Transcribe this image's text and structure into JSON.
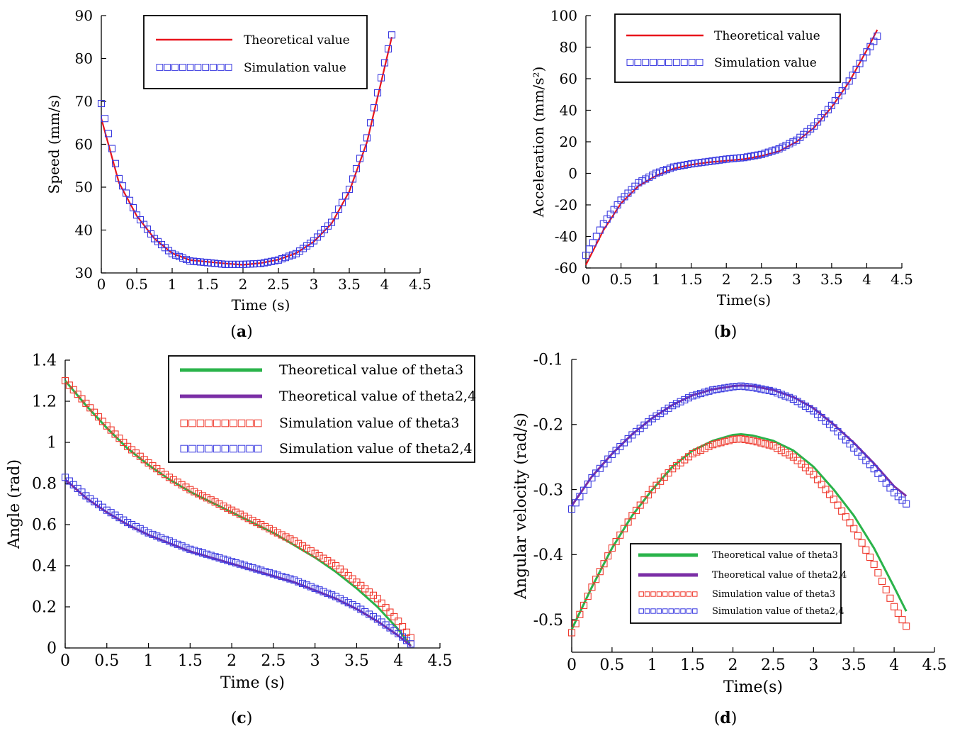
{
  "colors": {
    "theory_red": "#e8141c",
    "sim_blue": "#3a3ae0",
    "sim_red": "#ef3a2e",
    "theory_green": "#2ab34a",
    "theory_purple": "#7b2fa6"
  },
  "captions": {
    "a": "a",
    "b": "b",
    "c": "c",
    "d": "d"
  },
  "chart_data": [
    {
      "id": "a",
      "type": "line",
      "title": "",
      "xlabel": "Time (s)",
      "ylabel": "Speed (mm/s)",
      "xlim": [
        0,
        4.5
      ],
      "ylim": [
        30,
        90
      ],
      "xticks": [
        "0",
        "0.5",
        "1",
        "1.5",
        "2",
        "2.5",
        "3",
        "3.5",
        "4",
        "4.5"
      ],
      "yticks": [
        "30",
        "40",
        "50",
        "60",
        "70",
        "80",
        "90"
      ],
      "legend_position": "top-center",
      "series": [
        {
          "name": "Theoretical value",
          "kind": "line",
          "color": "#e8141c",
          "x": [
            0,
            0.25,
            0.5,
            0.75,
            1,
            1.25,
            1.5,
            1.75,
            2,
            2.25,
            2.5,
            2.75,
            3,
            3.25,
            3.5,
            3.75,
            4,
            4.1
          ],
          "y": [
            66,
            51,
            43.3,
            38,
            34.6,
            33,
            32.6,
            32.2,
            31.9,
            32.3,
            33.1,
            34.6,
            37.3,
            41.5,
            49,
            60.5,
            78,
            85
          ]
        },
        {
          "name": "Simulation value",
          "kind": "markers",
          "color": "#3a3ae0",
          "x": [
            0,
            0.25,
            0.5,
            0.75,
            1,
            1.25,
            1.5,
            1.75,
            2,
            2.25,
            2.5,
            2.75,
            3,
            3.25,
            3.5,
            3.75,
            4,
            4.1
          ],
          "y": [
            69.5,
            52,
            43.5,
            38,
            34.5,
            32.8,
            32.4,
            32,
            32,
            32.2,
            33,
            34.5,
            37.5,
            41.8,
            49.5,
            61.5,
            79,
            85.5
          ]
        }
      ]
    },
    {
      "id": "b",
      "type": "line",
      "title": "",
      "xlabel": "Time(s)",
      "ylabel": "Acceleration (mm/s²)",
      "xlim": [
        0,
        4.5
      ],
      "ylim": [
        -60,
        100
      ],
      "xticks": [
        "0",
        "0.5",
        "1",
        "1.5",
        "2",
        "2.5",
        "3",
        "3.5",
        "4",
        "4.5"
      ],
      "yticks": [
        "-60",
        "-40",
        "-20",
        "0",
        "20",
        "40",
        "60",
        "80",
        "100"
      ],
      "legend_position": "top-center",
      "series": [
        {
          "name": "Theoretical value",
          "kind": "line",
          "color": "#e8141c",
          "x": [
            0,
            0.25,
            0.5,
            0.75,
            1,
            1.25,
            1.5,
            1.75,
            2,
            2.25,
            2.5,
            2.75,
            3,
            3.25,
            3.5,
            3.75,
            4,
            4.15
          ],
          "y": [
            -58,
            -36,
            -19,
            -8,
            -1.5,
            3,
            5.5,
            7,
            8,
            9,
            11,
            14,
            20,
            29,
            42,
            58,
            78,
            91
          ]
        },
        {
          "name": "Simulation value",
          "kind": "markers",
          "color": "#3a3ae0",
          "x": [
            0,
            0.25,
            0.5,
            0.75,
            1,
            1.25,
            1.5,
            1.75,
            2,
            2.25,
            2.5,
            2.75,
            3,
            3.25,
            3.5,
            3.75,
            4,
            4.15
          ],
          "y": [
            -52,
            -32,
            -17,
            -6,
            0,
            4,
            6,
            7.5,
            9,
            10,
            12,
            15.5,
            21,
            30,
            43,
            58.5,
            77,
            87
          ]
        }
      ]
    },
    {
      "id": "c",
      "type": "line",
      "title": "",
      "xlabel": "Time (s)",
      "ylabel": "Angle (rad)",
      "xlim": [
        0,
        4.5
      ],
      "ylim": [
        0,
        1.4
      ],
      "xticks": [
        "0",
        "0.5",
        "1",
        "1.5",
        "2",
        "2.5",
        "3",
        "3.5",
        "4",
        "4.5"
      ],
      "yticks": [
        "0",
        "0.2",
        "0.4",
        "0.6",
        "0.8",
        "1",
        "1.2",
        "1.4"
      ],
      "legend_position": "top-right",
      "series": [
        {
          "name": "Theoretical value of theta3",
          "kind": "line",
          "color": "#2ab34a",
          "x": [
            0,
            0.25,
            0.5,
            0.75,
            1,
            1.25,
            1.5,
            1.75,
            2,
            2.25,
            2.5,
            2.75,
            3,
            3.25,
            3.5,
            3.75,
            4,
            4.15
          ],
          "y": [
            1.3,
            1.18,
            1.07,
            0.97,
            0.89,
            0.82,
            0.76,
            0.71,
            0.66,
            0.61,
            0.56,
            0.5,
            0.44,
            0.37,
            0.29,
            0.2,
            0.09,
            0.01
          ]
        },
        {
          "name": "Theoretical value of theta2,4",
          "kind": "line",
          "color": "#7b2fa6",
          "x": [
            0,
            0.25,
            0.5,
            0.75,
            1,
            1.25,
            1.5,
            1.75,
            2,
            2.25,
            2.5,
            2.75,
            3,
            3.25,
            3.5,
            3.75,
            4,
            4.15
          ],
          "y": [
            0.82,
            0.73,
            0.66,
            0.6,
            0.55,
            0.51,
            0.47,
            0.44,
            0.41,
            0.38,
            0.35,
            0.32,
            0.28,
            0.24,
            0.19,
            0.13,
            0.06,
            0.01
          ]
        },
        {
          "name": "Simulation value of theta3",
          "kind": "markers",
          "color": "#ef3a2e",
          "x": [
            0,
            0.25,
            0.5,
            0.75,
            1,
            1.25,
            1.5,
            1.75,
            2,
            2.25,
            2.5,
            2.75,
            3,
            3.25,
            3.5,
            3.75,
            4,
            4.15
          ],
          "y": [
            1.3,
            1.19,
            1.08,
            0.98,
            0.9,
            0.83,
            0.77,
            0.72,
            0.67,
            0.62,
            0.57,
            0.52,
            0.46,
            0.4,
            0.32,
            0.24,
            0.13,
            0.05
          ]
        },
        {
          "name": "Simulation value of theta2,4",
          "kind": "markers",
          "color": "#3a3ae0",
          "x": [
            0,
            0.25,
            0.5,
            0.75,
            1,
            1.25,
            1.5,
            1.75,
            2,
            2.25,
            2.5,
            2.75,
            3,
            3.25,
            3.5,
            3.75,
            4,
            4.15
          ],
          "y": [
            0.83,
            0.74,
            0.67,
            0.61,
            0.56,
            0.52,
            0.48,
            0.45,
            0.42,
            0.39,
            0.36,
            0.33,
            0.29,
            0.25,
            0.2,
            0.14,
            0.07,
            0.02
          ]
        }
      ]
    },
    {
      "id": "d",
      "type": "line",
      "title": "",
      "xlabel": "Time(s)",
      "ylabel": "Angular velocity (rad/s)",
      "xlim": [
        0,
        4.5
      ],
      "ylim": [
        -0.55,
        -0.1
      ],
      "xticks": [
        "0",
        "0.5",
        "1",
        "1.5",
        "2",
        "2.5",
        "3",
        "3.5",
        "4",
        "4.5"
      ],
      "yticks": [
        "-0.5",
        "-0.4",
        "-0.3",
        "-0.2",
        "-0.1"
      ],
      "legend_position": "bottom-center",
      "series": [
        {
          "name": "Theoretical value of theta3",
          "kind": "line",
          "color": "#2ab34a",
          "x": [
            0,
            0.25,
            0.5,
            0.75,
            1,
            1.25,
            1.5,
            1.75,
            2,
            2.1,
            2.25,
            2.5,
            2.75,
            3,
            3.25,
            3.5,
            3.75,
            4,
            4.15
          ],
          "y": [
            -0.515,
            -0.45,
            -0.39,
            -0.34,
            -0.3,
            -0.265,
            -0.24,
            -0.225,
            -0.216,
            -0.215,
            -0.217,
            -0.225,
            -0.24,
            -0.265,
            -0.3,
            -0.34,
            -0.39,
            -0.45,
            -0.487
          ]
        },
        {
          "name": "Theoretical value of theta2,4",
          "kind": "line",
          "color": "#7b2fa6",
          "x": [
            0,
            0.25,
            0.5,
            0.75,
            1,
            1.25,
            1.5,
            1.75,
            2,
            2.1,
            2.25,
            2.5,
            2.75,
            3,
            3.25,
            3.5,
            3.75,
            4,
            4.15
          ],
          "y": [
            -0.325,
            -0.28,
            -0.245,
            -0.215,
            -0.19,
            -0.17,
            -0.155,
            -0.146,
            -0.141,
            -0.14,
            -0.141,
            -0.147,
            -0.158,
            -0.175,
            -0.2,
            -0.228,
            -0.26,
            -0.295,
            -0.31
          ]
        },
        {
          "name": "Simulation value of theta3",
          "kind": "markers",
          "color": "#ef3a2e",
          "x": [
            0,
            0.25,
            0.5,
            0.75,
            1,
            1.25,
            1.5,
            1.75,
            2,
            2.1,
            2.25,
            2.5,
            2.75,
            3,
            3.25,
            3.5,
            3.75,
            4,
            4.15
          ],
          "y": [
            -0.52,
            -0.45,
            -0.39,
            -0.34,
            -0.3,
            -0.268,
            -0.245,
            -0.231,
            -0.223,
            -0.222,
            -0.225,
            -0.233,
            -0.25,
            -0.277,
            -0.315,
            -0.36,
            -0.415,
            -0.48,
            -0.51
          ]
        },
        {
          "name": "Simulation value of theta2,4",
          "kind": "markers",
          "color": "#3a3ae0",
          "x": [
            0,
            0.25,
            0.5,
            0.75,
            1,
            1.25,
            1.5,
            1.75,
            2,
            2.1,
            2.25,
            2.5,
            2.75,
            3,
            3.25,
            3.5,
            3.75,
            4,
            4.15
          ],
          "y": [
            -0.33,
            -0.282,
            -0.246,
            -0.216,
            -0.191,
            -0.171,
            -0.156,
            -0.147,
            -0.142,
            -0.141,
            -0.143,
            -0.149,
            -0.161,
            -0.179,
            -0.205,
            -0.236,
            -0.268,
            -0.305,
            -0.322
          ]
        }
      ]
    }
  ]
}
